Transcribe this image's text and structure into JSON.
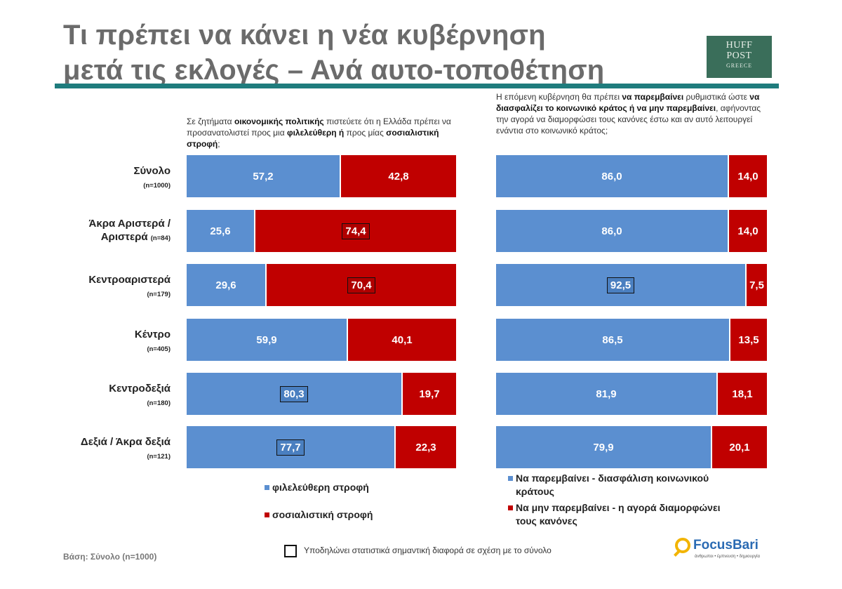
{
  "title": {
    "line1": "Τι πρέπει να κάνει η νέα κυβέρνηση",
    "line2": "μετά τις εκλογές – Ανά αυτο-τοποθέτηση"
  },
  "logo": {
    "line1": "HUFF",
    "line2": "POST",
    "line3": "GREECE"
  },
  "colors": {
    "blue": "#5b8fd0",
    "red": "#c00000",
    "rule": "#1f7c7d",
    "title": "#6b6b6b"
  },
  "rows": [
    {
      "name": "Σύνολο",
      "n": "(n=1000)"
    },
    {
      "name": "Άκρα Αριστερά /",
      "name2": "Αριστερά",
      "n": "(n=84)"
    },
    {
      "name": "Κεντροαριστερά",
      "n": "(n=179)"
    },
    {
      "name": "Κέντρο",
      "n": "(n=405)"
    },
    {
      "name": "Κεντροδεξιά",
      "n": "(n=180)"
    },
    {
      "name": "Δεξιά / Άκρα δεξιά",
      "n": "(n=121)"
    }
  ],
  "question_left": {
    "p1": "Σε ζητήματα ",
    "b1": "οικονομικής πολιτικής",
    "p2": " πιστεύετε ότι η Ελλάδα πρέπει να προσανατολιστεί προς μια ",
    "b2": "φιλελεύθερη ή",
    "p3": " προς μίας ",
    "b3": "σοσιαλιστική στροφή",
    "p4": ";"
  },
  "question_right": {
    "p1": "Η επόμενη κυβέρνηση θα πρέπει ",
    "b1": "να παρεμβαίνει",
    "p2": " ρυθμιστικά ώστε ",
    "b2": "να διασφαλίζει το κοινωνικό κράτος ή να μην παρεμβαίνει",
    "p3": ", αφήνοντας την αγορά να διαμορφώσει τους κανόνες έστω και αν αυτό λειτουργεί ενάντια στο κοινωνικό κράτος;"
  },
  "chart_data": [
    {
      "type": "bar",
      "orientation": "horizontal-stacked-100",
      "categories": [
        "Σύνολο",
        "Άκρα Αριστερά / Αριστερά",
        "Κεντροαριστερά",
        "Κέντρο",
        "Κεντροδεξιά",
        "Δεξιά / Άκρα δεξιά"
      ],
      "series": [
        {
          "name": "φιλελεύθερη στροφή",
          "color": "#5b8fd0",
          "values": [
            57.2,
            25.6,
            29.6,
            59.9,
            80.3,
            77.7
          ],
          "labels": [
            "57,2",
            "25,6",
            "29,6",
            "59,9",
            "80,3",
            "77,7"
          ],
          "significant": [
            false,
            false,
            false,
            false,
            true,
            true
          ]
        },
        {
          "name": "σοσιαλιστική στροφή",
          "color": "#c00000",
          "values": [
            42.8,
            74.4,
            70.4,
            40.1,
            19.7,
            22.3
          ],
          "labels": [
            "42,8",
            "74,4",
            "70,4",
            "40,1",
            "19,7",
            "22,3"
          ],
          "significant": [
            false,
            true,
            true,
            false,
            false,
            false
          ]
        }
      ]
    },
    {
      "type": "bar",
      "orientation": "horizontal-stacked-100",
      "categories": [
        "Σύνολο",
        "Άκρα Αριστερά / Αριστερά",
        "Κεντροαριστερά",
        "Κέντρο",
        "Κεντροδεξιά",
        "Δεξιά / Άκρα δεξιά"
      ],
      "series": [
        {
          "name": "Να παρεμβαίνει - διασφάλιση κοινωνικού κράτους",
          "color": "#5b8fd0",
          "values": [
            86.0,
            86.0,
            92.5,
            86.5,
            81.9,
            79.9
          ],
          "labels": [
            "86,0",
            "86,0",
            "92,5",
            "86,5",
            "81,9",
            "79,9"
          ],
          "significant": [
            false,
            false,
            true,
            false,
            false,
            false
          ]
        },
        {
          "name": "Να μην παρεμβαίνει - η αγορά διαμορφώνει τους κανόνες",
          "color": "#c00000",
          "values": [
            14.0,
            14.0,
            7.5,
            13.5,
            18.1,
            20.1
          ],
          "labels": [
            "14,0",
            "14,0",
            "7,5",
            "13,5",
            "18,1",
            "20,1"
          ],
          "significant": [
            false,
            false,
            false,
            false,
            false,
            false
          ]
        }
      ]
    }
  ],
  "legend_left": [
    "φιλελεύθερη στροφή",
    "σοσιαλιστική στροφή"
  ],
  "legend_right": [
    {
      "l1": "Να παρεμβαίνει - διασφάλιση κοινωνικού",
      "l2": "κράτους"
    },
    {
      "l1": "Να μην παρεμβαίνει - η αγορά διαμορφώνει",
      "l2": "τους κανόνες"
    }
  ],
  "note": "Υποδηλώνει στατιστικά σημαντική διαφορά σε σχέση με το σύνολο",
  "footer": "Βάση: Σύνολο (n=1000)",
  "brand": {
    "name": "FocusBari",
    "tagline": "άνθρωποι • έμπνευση • δημιουργία"
  }
}
